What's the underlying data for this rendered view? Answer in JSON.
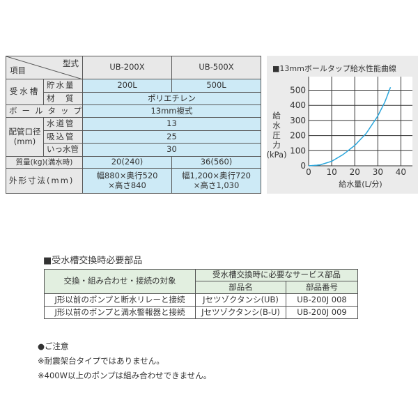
{
  "spec_table": {
    "corner_left": "項目",
    "corner_right": "型式",
    "models": [
      "UB-200X",
      "UB-500X"
    ],
    "tank_label": "受水槽",
    "storage_label": "貯水量",
    "storage": [
      "200L",
      "500L"
    ],
    "material_label": "材　質",
    "material": "ポリエチレン",
    "balltap_label": "ボールタップ",
    "balltap": "13mm複式",
    "pipe_label": "配管口径",
    "pipe_unit": "(mm)",
    "water_pipe_label": "水道管",
    "water_pipe": "13",
    "suction_pipe_label": "吸込管",
    "suction_pipe": "25",
    "overflow_pipe_label": "いっ水管",
    "overflow_pipe": "30",
    "mass_label": "質量(kg)(満水時)",
    "mass": [
      "20(240)",
      "36(560)"
    ],
    "dims_label": "外形寸法(mm)",
    "dims_line1": [
      "幅880×奥行520",
      "幅1,200×奥行720"
    ],
    "dims_line2": [
      "×高さ840",
      "×高さ1,030"
    ]
  },
  "chart_data": {
    "type": "line",
    "title": "■13mmボールタップ給水性能曲線",
    "xlabel": "給水量(L/分)",
    "ylabel": [
      "給",
      "水",
      "圧",
      "力",
      "(kPa)"
    ],
    "xlim": [
      0,
      45
    ],
    "ylim": [
      0,
      590
    ],
    "xticks": [
      0,
      10,
      20,
      30,
      40
    ],
    "yticks": [
      0,
      100,
      200,
      300,
      400,
      500
    ],
    "grid": true,
    "line_color": "#2aa6dc",
    "x": [
      0,
      5,
      10,
      15,
      20,
      25,
      30,
      33,
      35.5
    ],
    "y": [
      0,
      6,
      30,
      75,
      135,
      215,
      330,
      420,
      520
    ]
  },
  "parts": {
    "title": "■受水槽交換時必要部品",
    "col_target": "交換・組み合わせ・接続の対象",
    "col_group": "受水槽交換時に必要なサービス部品",
    "col_name": "部品名",
    "col_number": "部品番号",
    "rows": [
      {
        "target": "J形以前のポンプと断水リレーと接続",
        "name": "Jセツゾクタンシ(UB)",
        "number": "UB-200J 008"
      },
      {
        "target": "J形以前のポンプと満水警報器と接続",
        "name": "Jセツゾクタンシ(B-U)",
        "number": "UB-200J 009"
      }
    ]
  },
  "notes": {
    "heading": "●ご注意",
    "items": [
      "※耐震架台タイプではありません。",
      "※400W以上のポンプは組み合わせできません。"
    ]
  }
}
